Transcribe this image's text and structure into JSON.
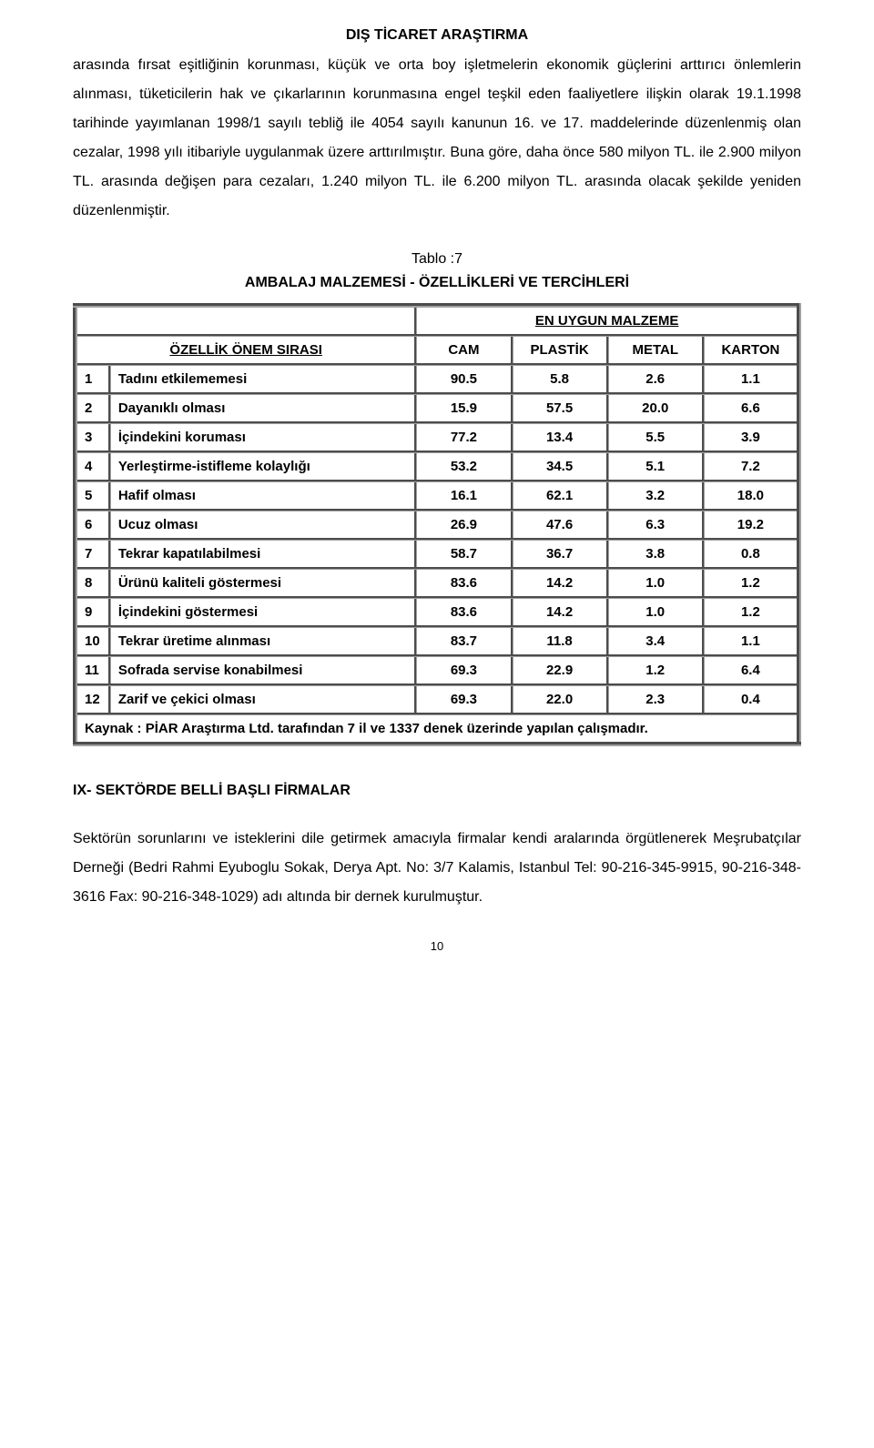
{
  "header": {
    "title": "DIŞ TİCARET ARAŞTIRMA"
  },
  "paragraph1": "arasında fırsat eşitliğinin korunması, küçük ve orta boy işletmelerin ekonomik güçlerini arttırıcı önlemlerin alınması, tüketicilerin hak ve çıkarlarının korunmasına engel teşkil eden faaliyetlere ilişkin olarak 19.1.1998 tarihinde yayımlanan 1998/1 sayılı tebliğ ile  4054 sayılı kanunun 16. ve 17.  maddelerinde düzenlenmiş olan cezalar, 1998 yılı itibariyle uygulanmak üzere arttırılmıştır.  Buna göre, daha önce 580 milyon TL. ile 2.900 milyon TL. arasında değişen para cezaları, 1.240 milyon TL. ile  6.200 milyon TL. arasında olacak şekilde yeniden düzenlenmiştir.",
  "table": {
    "caption_number": "Tablo :7",
    "caption_title": "AMBALAJ  MALZEMESİ - ÖZELLİKLERİ VE TERCİHLERİ",
    "merge_header": "EN UYGUN MALZEME",
    "row_header_label": "ÖZELLİK ÖNEM SIRASI",
    "columns": [
      "CAM",
      "PLASTİK",
      "METAL",
      "KARTON"
    ],
    "rows": [
      {
        "n": "1",
        "label": "Tadını etkilememesi",
        "v": [
          "90.5",
          "5.8",
          "2.6",
          "1.1"
        ]
      },
      {
        "n": "2",
        "label": "Dayanıklı olması",
        "v": [
          "15.9",
          "57.5",
          "20.0",
          "6.6"
        ]
      },
      {
        "n": "3",
        "label": "İçindekini koruması",
        "v": [
          "77.2",
          "13.4",
          "5.5",
          "3.9"
        ]
      },
      {
        "n": "4",
        "label": "Yerleştirme-istifleme kolaylığı",
        "v": [
          "53.2",
          "34.5",
          "5.1",
          "7.2"
        ]
      },
      {
        "n": "5",
        "label": "Hafif olması",
        "v": [
          "16.1",
          "62.1",
          "3.2",
          "18.0"
        ]
      },
      {
        "n": "6",
        "label": "Ucuz olması",
        "v": [
          "26.9",
          "47.6",
          "6.3",
          "19.2"
        ]
      },
      {
        "n": "7",
        "label": "Tekrar kapatılabilmesi",
        "v": [
          "58.7",
          "36.7",
          "3.8",
          "0.8"
        ]
      },
      {
        "n": "8",
        "label": "Ürünü kaliteli göstermesi",
        "v": [
          "83.6",
          "14.2",
          "1.0",
          "1.2"
        ]
      },
      {
        "n": "9",
        "label": "İçindekini göstermesi",
        "v": [
          "83.6",
          "14.2",
          "1.0",
          "1.2"
        ]
      },
      {
        "n": "10",
        "label": "Tekrar üretime alınması",
        "v": [
          "83.7",
          "11.8",
          "3.4",
          "1.1"
        ]
      },
      {
        "n": "11",
        "label": "Sofrada servise konabilmesi",
        "v": [
          "69.3",
          "22.9",
          "1.2",
          "6.4"
        ]
      },
      {
        "n": "12",
        "label": "Zarif ve çekici olması",
        "v": [
          "69.3",
          "22.0",
          "2.3",
          "0.4"
        ]
      }
    ],
    "source": "Kaynak : PİAR Araştırma Ltd. tarafından 7 il ve 1337 denek üzerinde yapılan çalışmadır."
  },
  "section_heading": "IX- SEKTÖRDE BELLİ BAŞLI FİRMALAR",
  "paragraph2": "Sektörün sorunlarını ve isteklerini dile getirmek amacıyla firmalar kendi   aralarında örgütlenerek Meşrubatçılar Derneği (Bedri Rahmi Eyuboglu Sokak, Derya Apt. No: 3/7 Kalamis, Istanbul Tel: 90-216-345-9915, 90-216-348-3616 Fax: 90-216-348-1029) adı altında bir dernek kurulmuştur.",
  "page_number": "10"
}
